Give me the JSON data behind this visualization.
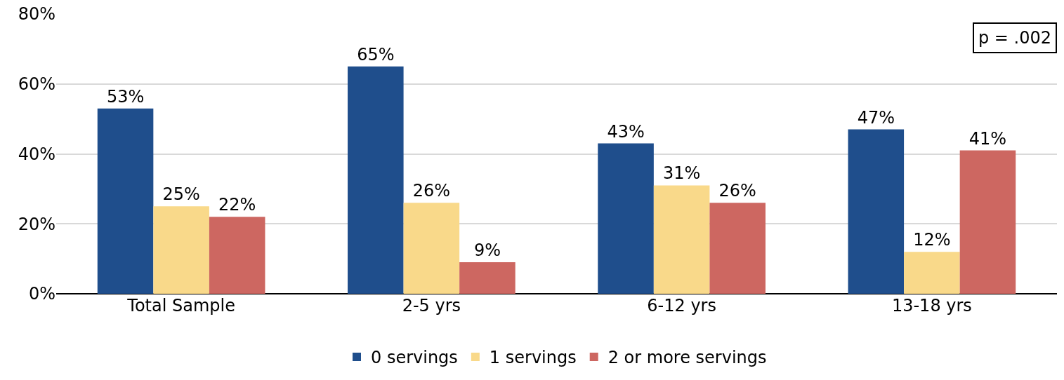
{
  "chart_data": {
    "type": "bar",
    "categories": [
      "Total Sample",
      "2-5 yrs",
      "6-12 yrs",
      "13-18 yrs"
    ],
    "series": [
      {
        "name": "0 servings",
        "color": "#1f4e8c",
        "values": [
          53,
          65,
          43,
          47
        ],
        "value_labels": [
          "53%",
          "65%",
          "43%",
          "47%"
        ]
      },
      {
        "name": "1 servings",
        "color": "#f9d98a",
        "values": [
          25,
          26,
          31,
          12
        ],
        "value_labels": [
          "25%",
          "26%",
          "31%",
          "12%"
        ]
      },
      {
        "name": "2 or more servings",
        "color": "#cd6761",
        "values": [
          22,
          9,
          26,
          41
        ],
        "value_labels": [
          "22%",
          "9%",
          "26%",
          "41%"
        ]
      }
    ],
    "ylim": [
      0,
      80
    ],
    "yticks": [
      {
        "value": 0,
        "label": "0%"
      },
      {
        "value": 20,
        "label": "20%"
      },
      {
        "value": 40,
        "label": "40%"
      },
      {
        "value": 60,
        "label": "60%"
      },
      {
        "value": 80,
        "label": "80%"
      }
    ],
    "grid": "y",
    "legend": "bottom",
    "annotations": [
      "p = .002"
    ]
  }
}
